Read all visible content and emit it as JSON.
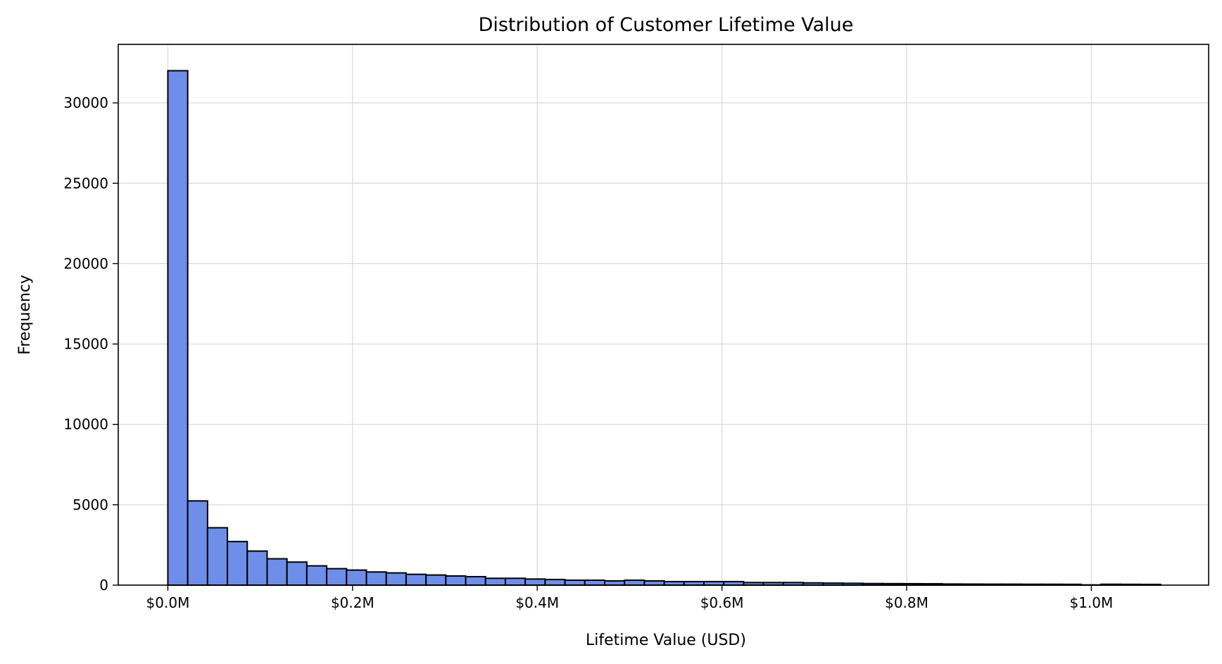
{
  "chart_data": {
    "type": "bar",
    "title": "Distribution of Customer Lifetime Value",
    "xlabel": "Lifetime Value (USD)",
    "ylabel": "Frequency",
    "bin_start": 0.0,
    "bin_width": 0.0215,
    "bin_unit": "M USD",
    "values": [
      32000,
      5240,
      3570,
      2710,
      2120,
      1640,
      1435,
      1200,
      1025,
      937,
      820,
      760,
      673,
      630,
      570,
      527,
      425,
      425,
      380,
      351,
      307,
      307,
      263,
      307,
      263,
      220,
      220,
      220,
      220,
      161,
      161,
      161,
      140,
      125,
      115,
      100,
      95,
      90,
      85,
      70,
      65,
      60,
      60,
      55,
      55,
      50,
      15,
      55,
      50,
      45
    ],
    "xlim": [
      -0.0537,
      1.127
    ],
    "ylim": [
      0,
      33640
    ],
    "xticks": [
      0,
      0.2,
      0.4,
      0.6,
      0.8,
      1.0
    ],
    "xtick_labels": [
      "$0.0M",
      "$0.2M",
      "$0.4M",
      "$0.6M",
      "$0.8M",
      "$1.0M"
    ],
    "yticks": [
      0,
      5000,
      10000,
      15000,
      20000,
      25000,
      30000
    ],
    "ytick_labels": [
      "0",
      "5000",
      "10000",
      "15000",
      "20000",
      "25000",
      "30000"
    ],
    "grid": true,
    "colors": {
      "bar": "#6e8ee9",
      "edge": "#000000",
      "grid": "#d9d9d9"
    }
  }
}
